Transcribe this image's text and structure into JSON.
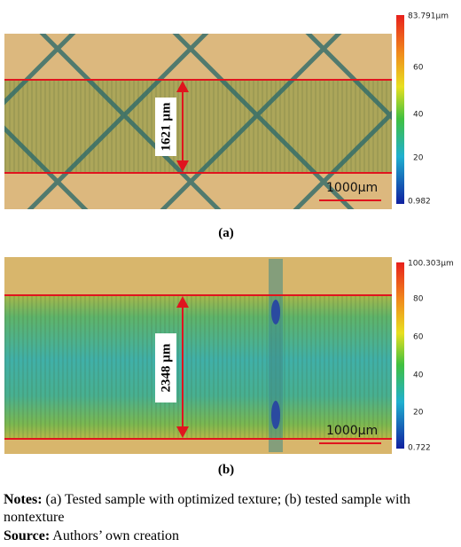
{
  "panels": [
    {
      "measurement": "1621 µm",
      "scale_bar": "1000µm",
      "colorbar": {
        "max": "83.791µm",
        "ticks": [
          "60",
          "40",
          "20"
        ],
        "min": "0.982"
      },
      "caption": "(a)"
    },
    {
      "measurement": "2348 µm",
      "scale_bar": "1000µm",
      "colorbar": {
        "max": "100.303µm",
        "ticks": [
          "80",
          "60",
          "40",
          "20"
        ],
        "min": "0.722"
      },
      "caption": "(b)"
    }
  ],
  "notes": {
    "label": "Notes:",
    "text": "(a) Tested sample with optimized texture; (b) tested sample with nontexture"
  },
  "source": {
    "label": "Source:",
    "text": "Authors’ own creation"
  }
}
